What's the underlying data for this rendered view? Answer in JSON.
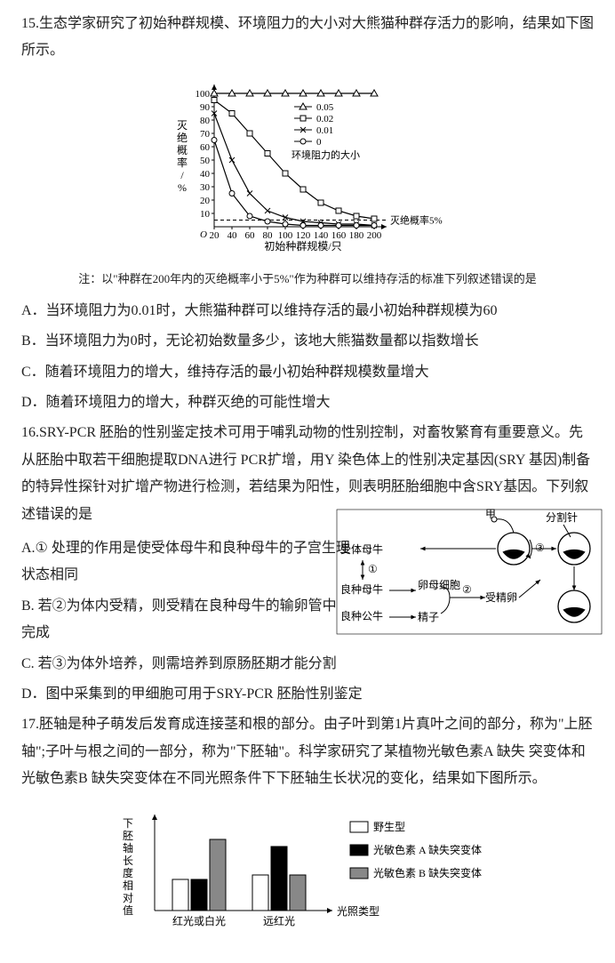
{
  "q15": {
    "number": "15.",
    "stem": "生态学家研究了初始种群规模、环境阻力的大小对大熊猫种群存活力的影响，结果如下图所示。",
    "chart": {
      "y_label": "灭绝概率/%",
      "x_label": "初始种群规模/只",
      "x_ticks": [
        "20",
        "40",
        "60",
        "80",
        "100",
        "120",
        "140",
        "160",
        "180",
        "200"
      ],
      "y_ticks": [
        "10",
        "20",
        "30",
        "40",
        "50",
        "60",
        "70",
        "80",
        "90",
        "100"
      ],
      "legend_title": "环境阻力的大小",
      "legend_items": [
        "0.05",
        "0.02",
        "0.01",
        "0"
      ],
      "threshold_label": "灭绝概率5%",
      "origin_label": "O",
      "series_color": "#000000",
      "background": "#ffffff",
      "axis_color": "#000000",
      "fontsize_axis": 11,
      "fontsize_legend": 11,
      "markers": [
        "triangle",
        "square",
        "x",
        "circle"
      ],
      "series": {
        "s005": [
          [
            20,
            100
          ],
          [
            40,
            100
          ],
          [
            60,
            100
          ],
          [
            80,
            100
          ],
          [
            100,
            100
          ],
          [
            120,
            100
          ],
          [
            140,
            100
          ],
          [
            160,
            100
          ],
          [
            180,
            100
          ],
          [
            200,
            100
          ]
        ],
        "s002": [
          [
            20,
            95
          ],
          [
            40,
            85
          ],
          [
            60,
            70
          ],
          [
            80,
            55
          ],
          [
            100,
            40
          ],
          [
            120,
            28
          ],
          [
            140,
            18
          ],
          [
            160,
            12
          ],
          [
            180,
            8
          ],
          [
            200,
            6
          ]
        ],
        "s001": [
          [
            20,
            85
          ],
          [
            40,
            50
          ],
          [
            60,
            25
          ],
          [
            80,
            12
          ],
          [
            100,
            7
          ],
          [
            120,
            4
          ],
          [
            140,
            3
          ],
          [
            160,
            2
          ],
          [
            180,
            2
          ],
          [
            200,
            1
          ]
        ],
        "s0": [
          [
            20,
            65
          ],
          [
            40,
            25
          ],
          [
            60,
            8
          ],
          [
            80,
            4
          ],
          [
            100,
            2
          ],
          [
            120,
            1
          ],
          [
            140,
            1
          ],
          [
            160,
            1
          ],
          [
            180,
            1
          ],
          [
            200,
            1
          ]
        ]
      }
    },
    "note": "注：以\"种群在200年内的灭绝概率小于5%\"作为种群可以维持存活的标准下列叙述错误的是",
    "optA": "A．当环境阻力为0.01时，大熊猫种群可以维持存活的最小初始种群规模为60",
    "optB": "B．当环境阻力为0时，无论初始数量多少，该地大熊猫数量都以指数增长",
    "optC": "C．随着环境阻力的增大，维持存活的最小初始种群规模数量增大",
    "optD": "D．随着环境阻力的增大，种群灭绝的可能性增大"
  },
  "q16": {
    "number": "16.",
    "stem": "SRY-PCR 胚胎的性别鉴定技术可用于哺乳动物的性别控制，对畜牧繁育有重要意义。先从胚胎中取若干细胞提取DNA进行 PCR扩增，用Y 染色体上的性别决定基因(SRY 基因)制备的特异性探针对扩增产物进行检测，若结果为阳性，则表明胚胎细胞中含SRY基因。下列叙述错误的是",
    "optA": "A.① 处理的作用是使受体母牛和良种母牛的子宫生理状态相同",
    "optB": "B. 若②为体内受精，则受精在良种母牛的输卵管中完成",
    "optC": "C. 若③为体外培养，则需培养到原肠胚期才能分割",
    "optD": "D．图中采集到的甲细胞可用于SRY-PCR 胚胎性别鉴定",
    "diagram": {
      "label_recipient": "受体母牛",
      "label_donor_cow": "良种母牛",
      "label_donor_bull": "良种公牛",
      "label_egg": "卵母细胞",
      "label_sperm": "精子",
      "label_fert": "受精卵",
      "label_jia": "甲",
      "label_split": "分割针",
      "num1": "①",
      "num2": "②",
      "num3": "③",
      "line_color": "#000000",
      "fill_color": "#000000",
      "background": "#ffffff",
      "fontsize": 12
    }
  },
  "q17": {
    "number": "17.",
    "stem": "胚轴是种子萌发后发育成连接茎和根的部分。由子叶到第1片真叶之间的部分，称为\"上胚轴\";子叶与根之间的一部分，称为\"下胚轴\"。科学家研究了某植物光敏色素A 缺失 突变体和光敏色素B 缺失突变体在不同光照条件下下胚轴生长状况的变化，结果如下图所示。",
    "chart": {
      "y_label": "下胚轴长度相对值",
      "x_label": "光照类型",
      "categories": [
        "红光或白光",
        "远红光"
      ],
      "legend_items": [
        "野生型",
        "光敏色素 A 缺失突变体",
        "光敏色素 B 缺失突变体"
      ],
      "colors": [
        "#ffffff",
        "#000000",
        "#888888"
      ],
      "border_color": "#000000",
      "data": {
        "red_white": [
          0.35,
          0.35,
          0.8
        ],
        "far_red": [
          0.4,
          0.72,
          0.4
        ]
      },
      "ylim": [
        0,
        1
      ],
      "fontsize": 12,
      "bar_border": "#000000"
    }
  }
}
